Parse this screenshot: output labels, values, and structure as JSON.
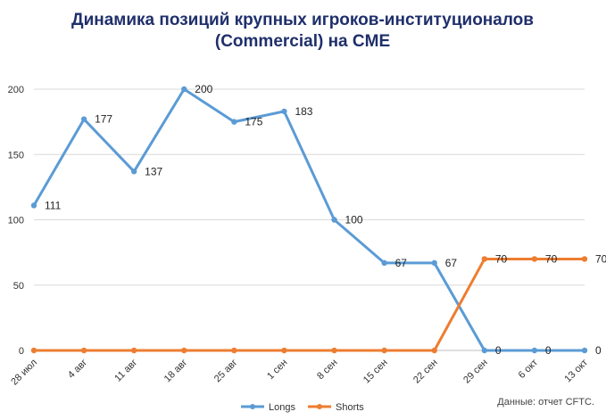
{
  "chart_data": {
    "type": "line",
    "title_lines": [
      "Динамика позиций крупных игроков-институционалов",
      "(Commercial) на CME"
    ],
    "categories": [
      "28 июл",
      "4 авг",
      "11 авг",
      "18 авг",
      "25 авг",
      "1 сен",
      "8 сен",
      "15 сен",
      "22 сен",
      "29 сен",
      "6 окт",
      "13 окт"
    ],
    "series": [
      {
        "name": "Longs",
        "color": "#5b9bd5",
        "values": [
          111,
          177,
          137,
          200,
          175,
          183,
          100,
          67,
          67,
          0,
          0,
          0
        ],
        "labels": [
          "111",
          "177",
          "137",
          "200",
          "175",
          "183",
          "100",
          "67",
          "67",
          "0",
          "0",
          "0"
        ]
      },
      {
        "name": "Shorts",
        "color": "#ed7d31",
        "values": [
          0,
          0,
          0,
          0,
          0,
          0,
          0,
          0,
          0,
          70,
          70,
          70
        ],
        "labels": [
          "",
          "",
          "",
          "",
          "",
          "",
          "",
          "",
          "",
          "70",
          "70",
          "70"
        ]
      }
    ],
    "yticks": [
      "0",
      "50",
      "100",
      "150",
      "200"
    ],
    "ylim": [
      0,
      200
    ],
    "grid": true,
    "legend_position": "bottom",
    "source_note": "Данные: отчет CFTC."
  }
}
